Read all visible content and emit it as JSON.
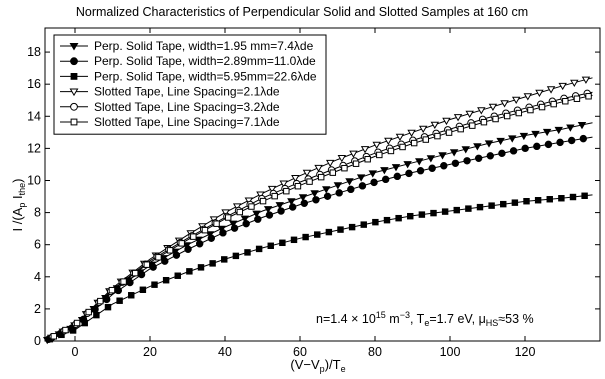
{
  "chart_data": {
    "type": "line",
    "title": "Normalized Characteristics of Perpendicular Solid and Slotted Samples at 160 cm",
    "xlabel": {
      "base": "(V−V",
      "sub": "p",
      "mid": ")/T",
      "sub2": "e"
    },
    "ylabel": {
      "base": "I /(A",
      "sub": "p",
      "mid": " I",
      "sub2": "the",
      "end": ")"
    },
    "xlim": [
      -8,
      140
    ],
    "ylim": [
      0,
      19.5
    ],
    "x_ticks": [
      0,
      20,
      40,
      60,
      80,
      100,
      120
    ],
    "y_ticks": [
      0,
      2,
      4,
      6,
      8,
      10,
      12,
      14,
      16,
      18
    ],
    "grid": false,
    "legend_position": "top-left",
    "annotation": {
      "p1": "n=1.4 × 10",
      "exp1": "15",
      "p2": " m",
      "exp2": "−3",
      "p3": ", T",
      "sub1": "e",
      "p4": "=1.7 eV, μ",
      "sub2": "HS",
      "p5": "≈53 %"
    },
    "series": [
      {
        "name": "Perp. Solid Tape, width=1.95 mm=7.4λde",
        "marker": "triangle-down",
        "fill": true,
        "x": [
          -8,
          0,
          10,
          20,
          30,
          40,
          50,
          60,
          70,
          80,
          90,
          100,
          110,
          120,
          130,
          138
        ],
        "y": [
          0,
          0.9,
          3.1,
          4.7,
          6.0,
          7.1,
          8.1,
          8.9,
          9.7,
          10.5,
          11.1,
          11.7,
          12.3,
          12.8,
          13.2,
          13.6
        ]
      },
      {
        "name": "Perp. Solid Tape, width=2.89mm=11.0λde",
        "marker": "circle",
        "fill": true,
        "x": [
          -8,
          0,
          10,
          20,
          30,
          40,
          50,
          60,
          70,
          80,
          90,
          100,
          110,
          120,
          130,
          138
        ],
        "y": [
          0,
          0.9,
          2.9,
          4.5,
          5.7,
          6.8,
          7.7,
          8.5,
          9.2,
          9.9,
          10.5,
          11.0,
          11.5,
          12.0,
          12.4,
          12.7
        ]
      },
      {
        "name": "Perp. Solid Tape, width=5.95mm=22.6λde",
        "marker": "square",
        "fill": true,
        "x": [
          -8,
          0,
          10,
          20,
          30,
          40,
          50,
          60,
          70,
          80,
          90,
          100,
          110,
          120,
          130,
          138
        ],
        "y": [
          0,
          0.7,
          2.3,
          3.4,
          4.3,
          5.1,
          5.8,
          6.4,
          6.9,
          7.4,
          7.8,
          8.1,
          8.4,
          8.7,
          8.9,
          9.1
        ]
      },
      {
        "name": "Slotted Tape, Line Spacing=2.1λde",
        "marker": "triangle-down",
        "fill": false,
        "x": [
          -8,
          0,
          10,
          20,
          30,
          40,
          50,
          60,
          70,
          80,
          90,
          100,
          110,
          120,
          130,
          138
        ],
        "y": [
          0,
          1.0,
          3.3,
          5.1,
          6.6,
          8.0,
          9.2,
          10.3,
          11.3,
          12.2,
          13.0,
          13.8,
          14.5,
          15.2,
          15.9,
          16.4
        ]
      },
      {
        "name": "Slotted Tape, Line Spacing=3.2λde",
        "marker": "circle",
        "fill": false,
        "x": [
          -8,
          0,
          10,
          20,
          30,
          40,
          50,
          60,
          70,
          80,
          90,
          100,
          110,
          120,
          130,
          138
        ],
        "y": [
          0,
          1.0,
          3.2,
          5.0,
          6.4,
          7.7,
          8.9,
          9.9,
          10.8,
          11.7,
          12.5,
          13.2,
          13.9,
          14.5,
          15.1,
          15.5
        ]
      },
      {
        "name": "Slotted Tape, Line Spacing=7.1λde",
        "marker": "square",
        "fill": false,
        "x": [
          -8,
          0,
          10,
          20,
          30,
          40,
          50,
          60,
          70,
          80,
          90,
          100,
          110,
          120,
          130,
          138
        ],
        "y": [
          0,
          1.0,
          3.2,
          4.9,
          6.3,
          7.6,
          8.7,
          9.7,
          10.6,
          11.5,
          12.3,
          13.0,
          13.7,
          14.3,
          14.9,
          15.3
        ]
      }
    ]
  }
}
